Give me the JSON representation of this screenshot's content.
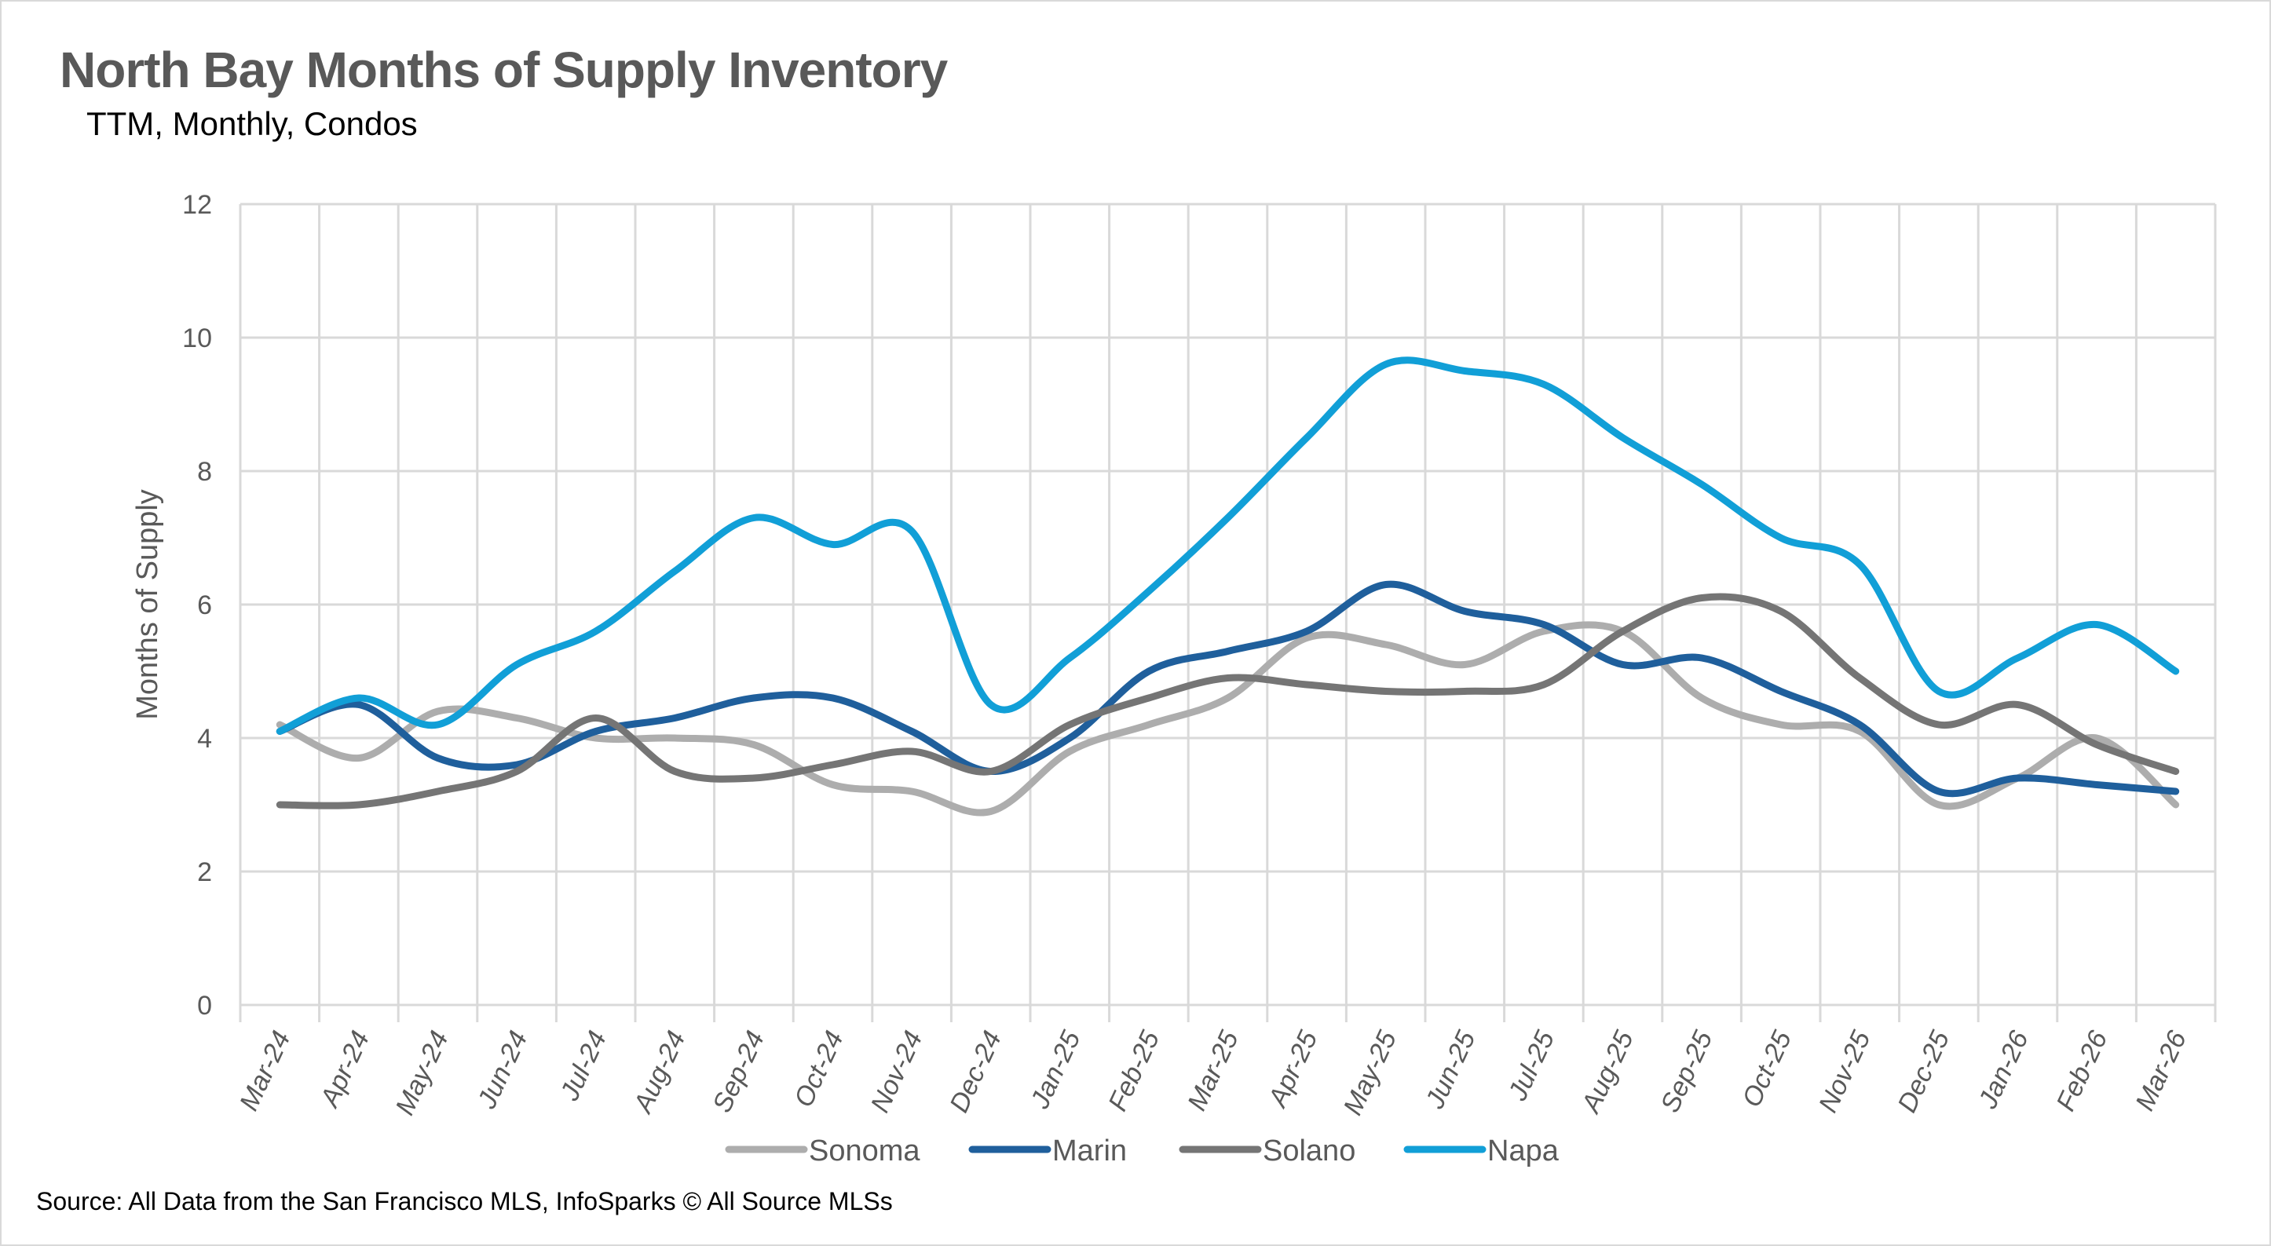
{
  "title": "North Bay Months of Supply Inventory",
  "subtitle": "TTM, Monthly, Condos",
  "source": "Source: All Data from the San Francisco MLS, InfoSparks © All Source MLSs",
  "colors": {
    "Sonoma": "#ADADAD",
    "Marin": "#1F5F9C",
    "Solano": "#757575",
    "Napa": "#119FD7",
    "grid": "#D9D9D9"
  },
  "chart_data": {
    "type": "line",
    "title": "North Bay Months of Supply Inventory",
    "subtitle": "TTM, Monthly, Condos",
    "xlabel": "",
    "ylabel": "Months of Supply",
    "ylim": [
      0,
      12
    ],
    "yticks": [
      0,
      2,
      4,
      6,
      8,
      10,
      12
    ],
    "grid": true,
    "legend": "bottom",
    "smooth": true,
    "categories": [
      "Mar-24",
      "Apr-24",
      "May-24",
      "Jun-24",
      "Jul-24",
      "Aug-24",
      "Sep-24",
      "Oct-24",
      "Nov-24",
      "Dec-24",
      "Jan-25",
      "Feb-25",
      "Mar-25",
      "Apr-25",
      "May-25",
      "Jun-25",
      "Jul-25",
      "Aug-25",
      "Sep-25",
      "Oct-25",
      "Nov-25",
      "Dec-25",
      "Jan-26",
      "Feb-26",
      "Mar-26"
    ],
    "series": [
      {
        "name": "Sonoma",
        "values": [
          4.2,
          3.7,
          4.4,
          4.3,
          4.0,
          4.0,
          3.9,
          3.3,
          3.2,
          2.9,
          3.8,
          4.2,
          4.6,
          5.5,
          5.4,
          5.1,
          5.6,
          5.6,
          4.6,
          4.2,
          4.1,
          3.0,
          3.4,
          4.0,
          3.0
        ]
      },
      {
        "name": "Marin",
        "values": [
          4.1,
          4.5,
          3.7,
          3.6,
          4.1,
          4.3,
          4.6,
          4.6,
          4.1,
          3.5,
          4.0,
          5.0,
          5.3,
          5.6,
          6.3,
          5.9,
          5.7,
          5.1,
          5.2,
          4.7,
          4.2,
          3.2,
          3.4,
          3.3,
          3.2
        ]
      },
      {
        "name": "Solano",
        "values": [
          3.0,
          3.0,
          3.2,
          3.5,
          4.3,
          3.5,
          3.4,
          3.6,
          3.8,
          3.5,
          4.2,
          4.6,
          4.9,
          4.8,
          4.7,
          4.7,
          4.8,
          5.6,
          6.1,
          5.9,
          4.9,
          4.2,
          4.5,
          3.9,
          3.5
        ]
      },
      {
        "name": "Napa",
        "values": [
          4.1,
          4.6,
          4.2,
          5.1,
          5.6,
          6.5,
          7.3,
          6.9,
          7.1,
          4.5,
          5.2,
          6.2,
          7.3,
          8.5,
          9.6,
          9.5,
          9.3,
          8.5,
          7.8,
          7.0,
          6.6,
          4.7,
          5.2,
          5.7,
          5.0
        ]
      }
    ]
  }
}
